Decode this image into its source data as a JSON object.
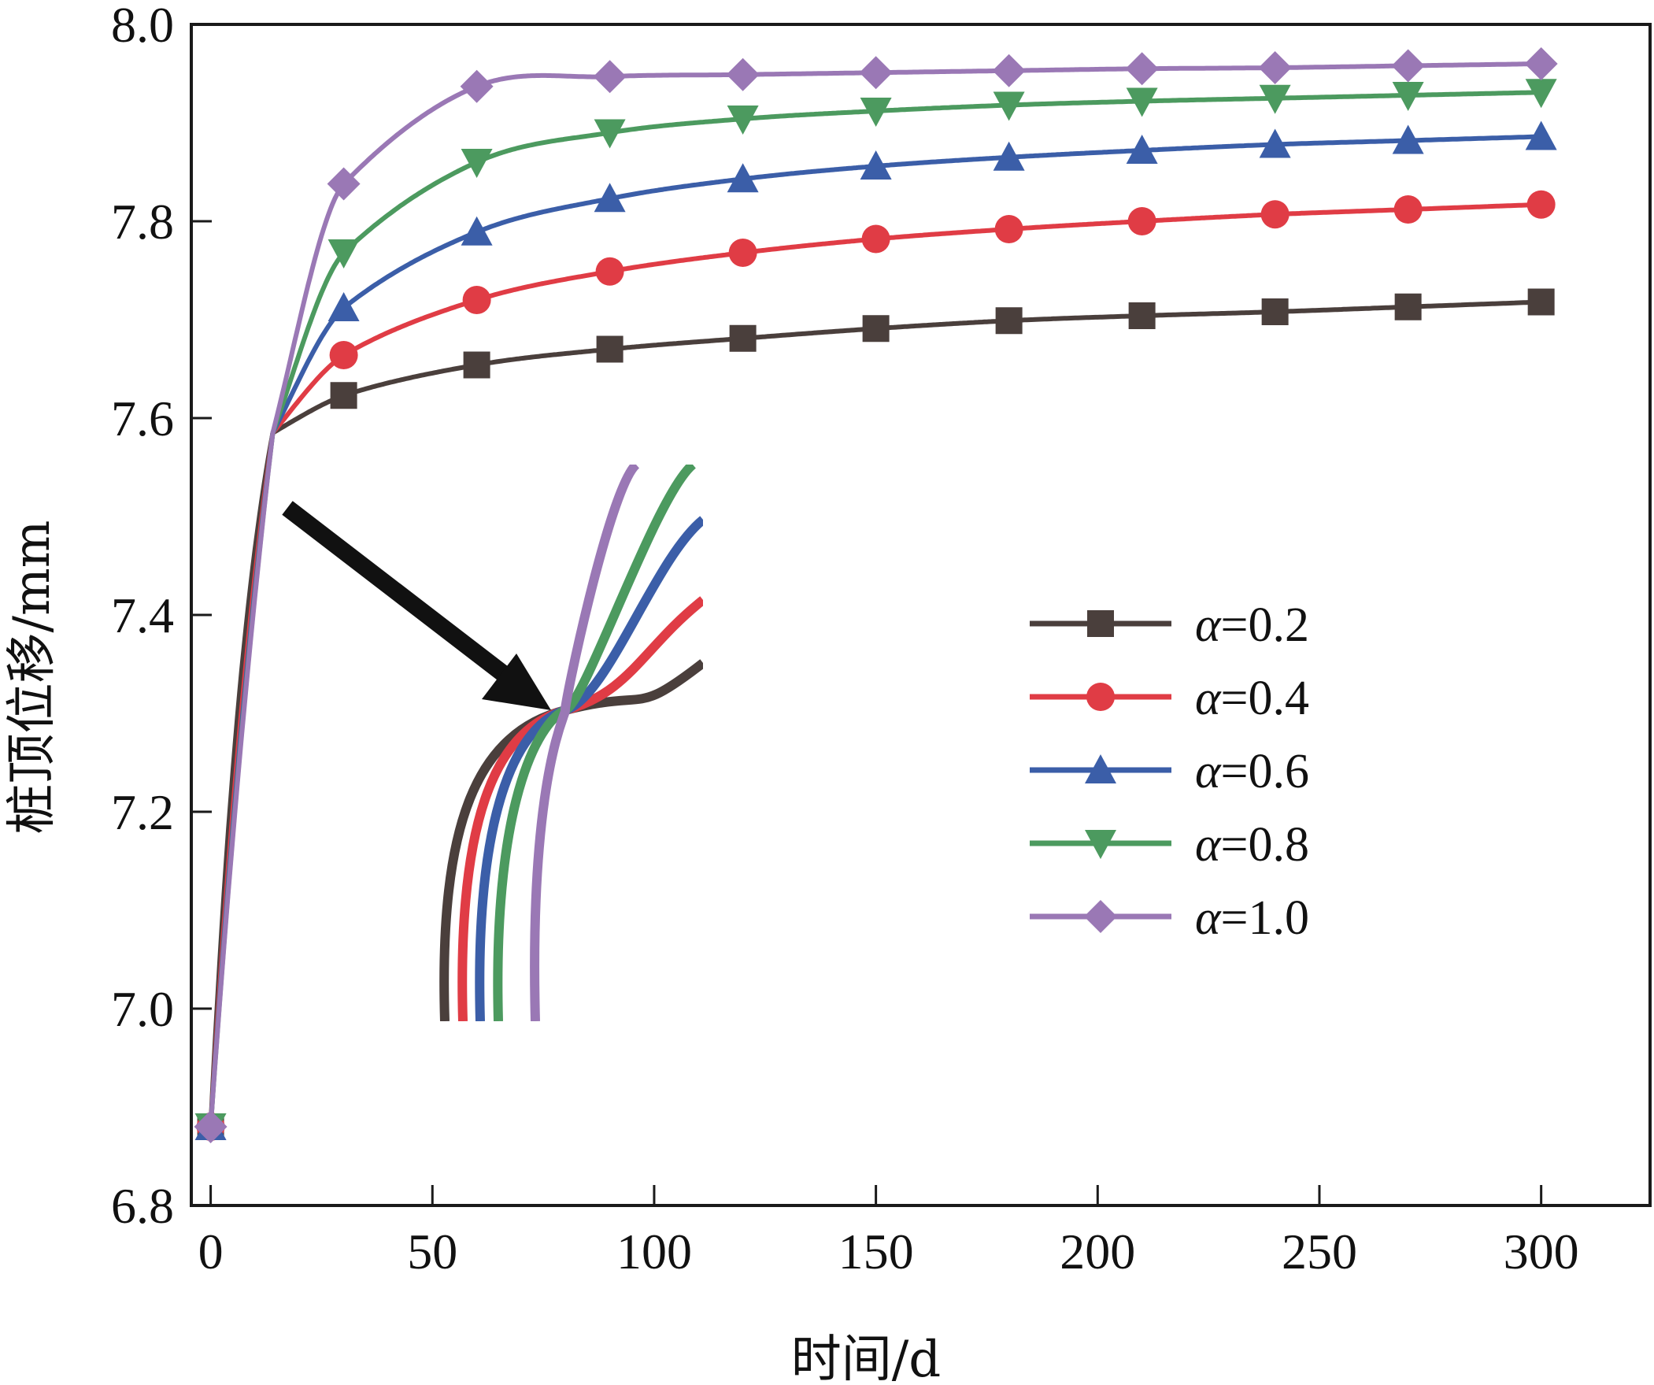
{
  "chart_data": {
    "type": "line",
    "xlabel": "时间/d",
    "ylabel": "桩顶位移/mm",
    "xlim": [
      -4,
      325
    ],
    "ylim": [
      6.8,
      8.0
    ],
    "xticks": [
      0,
      50,
      100,
      150,
      200,
      250,
      300
    ],
    "yticks": [
      6.8,
      7.0,
      7.2,
      7.4,
      7.6,
      7.8,
      8.0
    ],
    "xtick_labels": [
      "0",
      "50",
      "100",
      "150",
      "200",
      "250",
      "300"
    ],
    "ytick_labels": [
      "6.8",
      "7.0",
      "7.2",
      "7.4",
      "7.6",
      "7.8",
      "8.0"
    ],
    "grid": false,
    "legend_position": "center-right",
    "marker_x": [
      0,
      30,
      60,
      90,
      120,
      150,
      180,
      210,
      240,
      270,
      300
    ],
    "series": [
      {
        "name": "α=0.2",
        "symbol": "α",
        "value_label": "=0.2",
        "color": "#4a3f3c",
        "marker": "square",
        "values": [
          6.88,
          7.623,
          7.654,
          7.67,
          7.681,
          7.691,
          7.699,
          7.704,
          7.708,
          7.713,
          7.718
        ]
      },
      {
        "name": "α=0.4",
        "symbol": "α",
        "value_label": "=0.4",
        "color": "#e03c45",
        "marker": "circle",
        "values": [
          6.88,
          7.664,
          7.72,
          7.749,
          7.768,
          7.782,
          7.792,
          7.8,
          7.807,
          7.812,
          7.817
        ]
      },
      {
        "name": "α=0.6",
        "symbol": "α",
        "value_label": "=0.6",
        "color": "#3b5ea8",
        "marker": "triangle-up",
        "values": [
          6.88,
          7.712,
          7.789,
          7.823,
          7.843,
          7.856,
          7.865,
          7.872,
          7.878,
          7.882,
          7.886
        ]
      },
      {
        "name": "α=0.8",
        "symbol": "α",
        "value_label": "=0.8",
        "color": "#4c9a5f",
        "marker": "triangle-down",
        "values": [
          6.88,
          7.768,
          7.86,
          7.89,
          7.904,
          7.912,
          7.918,
          7.922,
          7.925,
          7.928,
          7.931
        ]
      },
      {
        "name": "α=1.0",
        "symbol": "α",
        "value_label": "=1.0",
        "color": "#9a78b5",
        "marker": "diamond",
        "values": [
          6.88,
          7.838,
          7.937,
          7.947,
          7.949,
          7.951,
          7.953,
          7.955,
          7.956,
          7.958,
          7.96
        ]
      }
    ],
    "annotations": [
      {
        "type": "arrow",
        "description": "points from the curve crossing near t≈14 d to the zoomed inset"
      },
      {
        "type": "inset",
        "description": "zoomed view of all curves crossing at one point"
      }
    ]
  }
}
